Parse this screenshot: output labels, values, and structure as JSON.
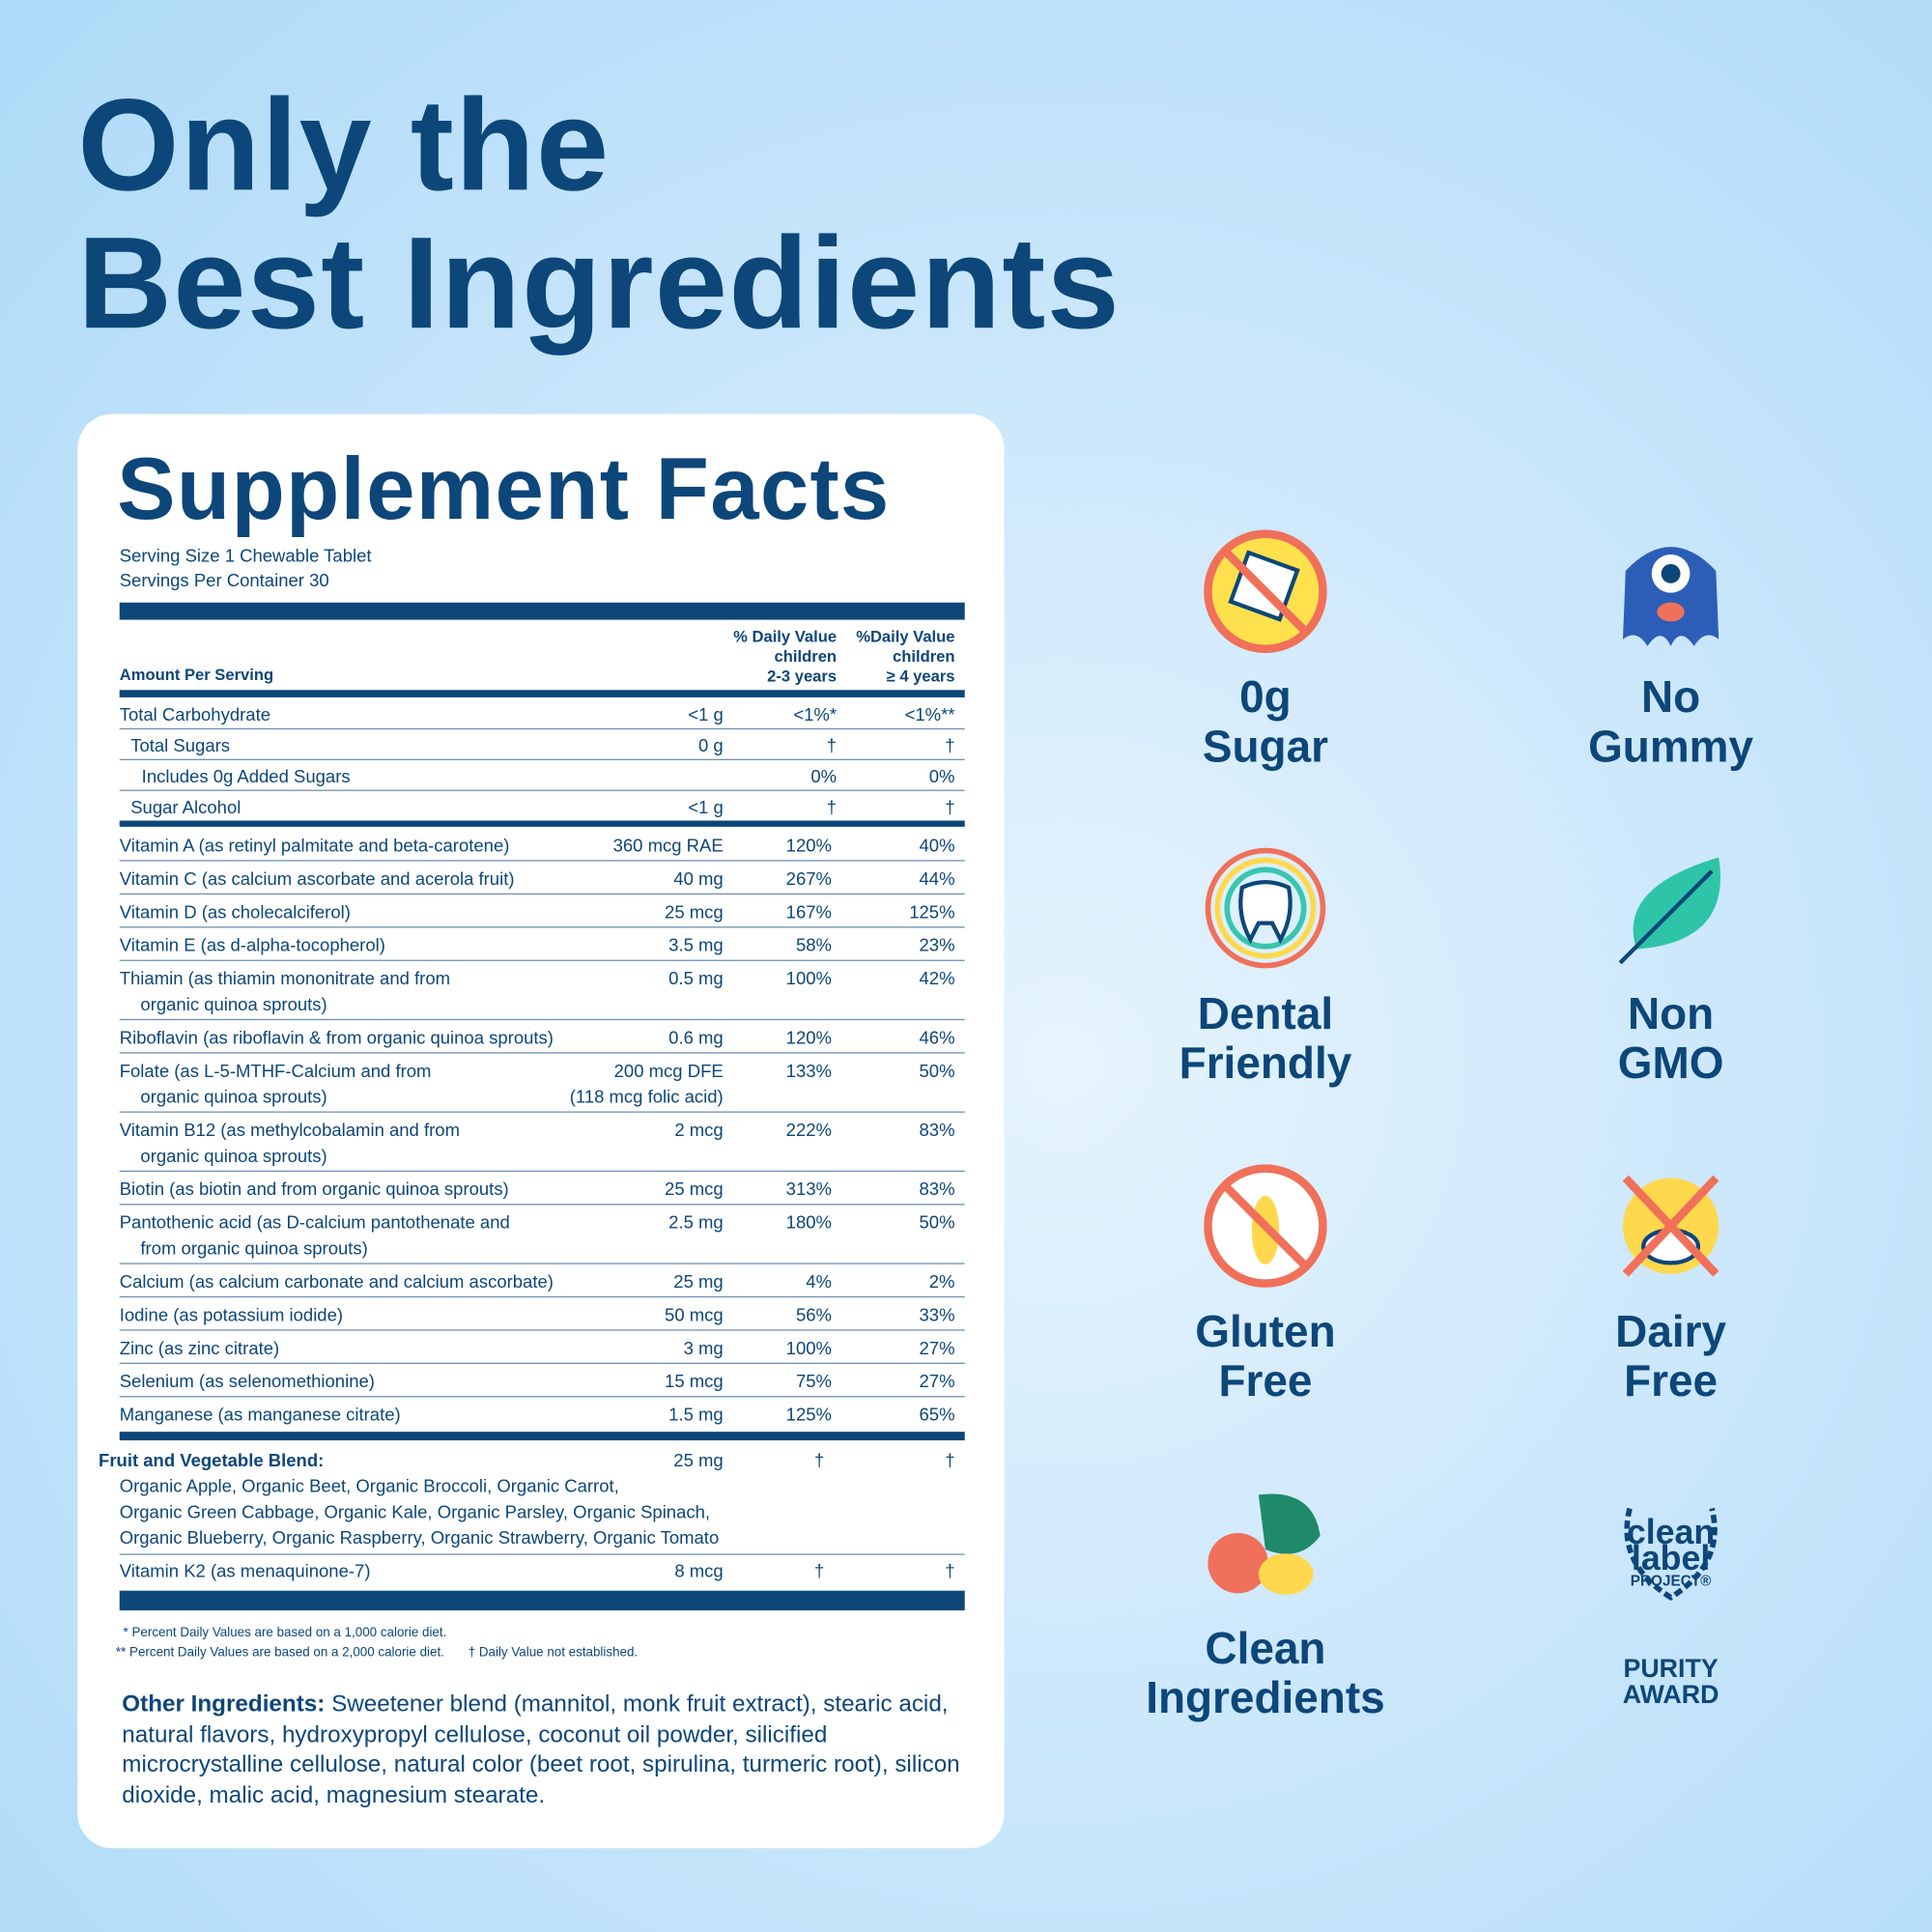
{
  "header": {
    "title": [
      "Only the",
      "Best Ingredients"
    ]
  },
  "facts": {
    "title": "Supplement Facts",
    "serving": [
      "Serving Size 1 Chewable Tablet",
      "Servings Per Container 30"
    ],
    "columns": {
      "amount": "Amount Per Serving",
      "dv1": [
        "% Daily Value",
        "children",
        "2-3 years"
      ],
      "dv2": [
        "%Daily Value",
        "children",
        "≥ 4 years"
      ]
    },
    "carb_rows": [
      {
        "name": [
          "Total Carbohydrate"
        ],
        "amount": [
          "<1 g"
        ],
        "dv1": "<1%*",
        "dv2": "<1%**"
      },
      {
        "name": [
          "Total Sugars"
        ],
        "amount": [
          "0 g"
        ],
        "dv1": "†",
        "dv2": "†"
      },
      {
        "name": [
          "Includes 0g Added Sugars"
        ],
        "amount": [],
        "dv1": "0%",
        "dv2": "0%"
      },
      {
        "name": [
          "Sugar Alcohol"
        ],
        "amount": [
          "<1 g"
        ],
        "dv1": "†",
        "dv2": "†"
      }
    ],
    "rows": [
      {
        "name": [
          "Vitamin A (as retinyl palmitate and beta-carotene)"
        ],
        "amount": [
          "360 mcg RAE"
        ],
        "dv1": "120%",
        "dv2": "40%"
      },
      {
        "name": [
          "Vitamin C (as calcium ascorbate and acerola fruit)"
        ],
        "amount": [
          "40 mg"
        ],
        "dv1": "267%",
        "dv2": "44%"
      },
      {
        "name": [
          "Vitamin D (as cholecalciferol)"
        ],
        "amount": [
          "25 mcg"
        ],
        "dv1": "167%",
        "dv2": "125%"
      },
      {
        "name": [
          "Vitamin E (as d-alpha-tocopherol)"
        ],
        "amount": [
          "3.5 mg"
        ],
        "dv1": "58%",
        "dv2": "23%"
      },
      {
        "name": [
          "Thiamin (as thiamin mononitrate and from",
          "organic quinoa sprouts)"
        ],
        "amount": [
          "0.5 mg"
        ],
        "dv1": "100%",
        "dv2": "42%"
      },
      {
        "name": [
          "Riboflavin (as riboflavin & from organic quinoa sprouts)"
        ],
        "amount": [
          "0.6 mg"
        ],
        "dv1": "120%",
        "dv2": "46%"
      },
      {
        "name": [
          "Folate (as L-5-MTHF-Calcium and from",
          "organic quinoa sprouts)"
        ],
        "amount": [
          "200 mcg DFE",
          "(118 mcg folic acid)"
        ],
        "dv1": "133%",
        "dv2": "50%"
      },
      {
        "name": [
          "Vitamin B12 (as methylcobalamin and from",
          "organic quinoa sprouts)"
        ],
        "amount": [
          "2 mcg"
        ],
        "dv1": "222%",
        "dv2": "83%"
      },
      {
        "name": [
          "Biotin (as biotin and from organic quinoa sprouts)"
        ],
        "amount": [
          "25 mcg"
        ],
        "dv1": "313%",
        "dv2": "83%"
      },
      {
        "name": [
          "Pantothenic acid (as D-calcium pantothenate and",
          "from organic quinoa sprouts)"
        ],
        "amount": [
          "2.5 mg"
        ],
        "dv1": "180%",
        "dv2": "50%"
      },
      {
        "name": [
          "Calcium (as calcium carbonate and calcium ascorbate)"
        ],
        "amount": [
          "25 mg"
        ],
        "dv1": "4%",
        "dv2": "2%"
      },
      {
        "name": [
          "Iodine (as potassium iodide)"
        ],
        "amount": [
          "50 mcg"
        ],
        "dv1": "56%",
        "dv2": "33%"
      },
      {
        "name": [
          "Zinc (as zinc citrate)"
        ],
        "amount": [
          "3 mg"
        ],
        "dv1": "100%",
        "dv2": "27%"
      },
      {
        "name": [
          "Selenium (as selenomethionine)"
        ],
        "amount": [
          "15 mcg"
        ],
        "dv1": "75%",
        "dv2": "27%"
      },
      {
        "name": [
          "Manganese (as manganese citrate)"
        ],
        "amount": [
          "1.5 mg"
        ],
        "dv1": "125%",
        "dv2": "65%"
      }
    ],
    "blend": {
      "name": [
        "Fruit and Vegetable Blend:",
        "Organic Apple, Organic Beet, Organic Broccoli, Organic Carrot,",
        "Organic Green Cabbage, Organic Kale, Organic Parsley, Organic Spinach,",
        "Organic Blueberry, Organic Raspberry, Organic Strawberry, Organic Tomato"
      ],
      "amount": [
        "25 mg"
      ],
      "dv1": "†",
      "dv2": "†"
    },
    "k2": {
      "name": [
        "Vitamin K2 (as menaquinone-7)"
      ],
      "amount": [
        "8 mcg"
      ],
      "dv1": "†",
      "dv2": "†"
    },
    "footnotes": [
      "* Percent Daily Values are based on a 1,000 calorie diet.",
      "** Percent Daily Values are based on a 2,000 calorie diet.",
      "† Daily Value not established."
    ],
    "other": {
      "label": "Other Ingredients:",
      "text": "Sweetener blend (mannitol, monk fruit extract), stearic acid, natural flavors, hydroxypropyl cellulose, coconut oil powder, silicified microcrystalline cellulose, natural color (beet root, spirulina, turmeric root), silicon dioxide, malic acid, magnesium stearate."
    }
  },
  "badges": [
    {
      "label": [
        "0g",
        "Sugar"
      ]
    },
    {
      "label": [
        "No",
        "Gummy"
      ]
    },
    {
      "label": [
        "Dental",
        "Friendly"
      ]
    },
    {
      "label": [
        "Non",
        "GMO"
      ]
    },
    {
      "label": [
        "Gluten",
        "Free"
      ]
    },
    {
      "label": [
        "Dairy",
        "Free"
      ]
    },
    {
      "label": [
        "Clean",
        "Ingredients"
      ]
    },
    {
      "label": [
        "clean",
        "label",
        "PROJECT®",
        "PURITY",
        "AWARD"
      ]
    }
  ]
}
